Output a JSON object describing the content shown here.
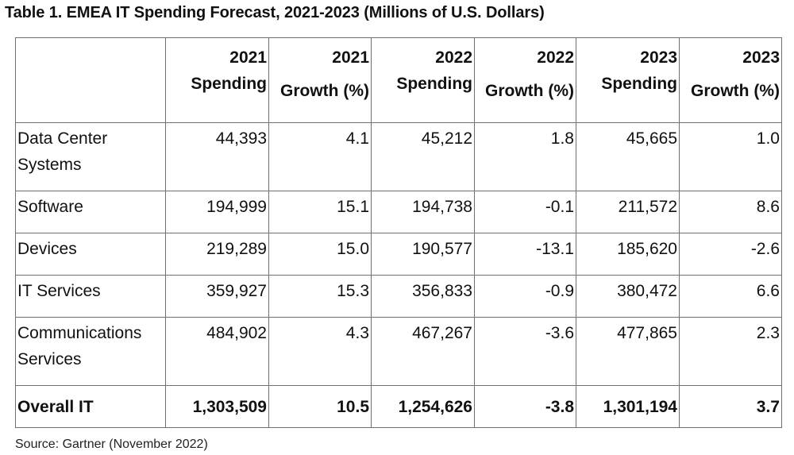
{
  "title": "Table 1. EMEA IT Spending Forecast, 2021-2023 (Millions of U.S. Dollars)",
  "table": {
    "headers": [
      {
        "top": "",
        "bottom": ""
      },
      {
        "top": "2021",
        "bottom": "Spending"
      },
      {
        "top": "2021",
        "bottom": "Growth (%)"
      },
      {
        "top": "2022",
        "bottom": "Spending"
      },
      {
        "top": "2022",
        "bottom": "Growth (%)"
      },
      {
        "top": "2023",
        "bottom": "Spending"
      },
      {
        "top": "2023",
        "bottom": "Growth (%)"
      }
    ],
    "rows": [
      {
        "label_1": "Data Center",
        "label_2": "Systems",
        "values": [
          "44,393",
          "4.1",
          "45,212",
          "1.8",
          "45,665",
          "1.0"
        ]
      },
      {
        "label_1": "Software",
        "label_2": "",
        "values": [
          "194,999",
          "15.1",
          "194,738",
          "-0.1",
          "211,572",
          "8.6"
        ]
      },
      {
        "label_1": "Devices",
        "label_2": "",
        "values": [
          "219,289",
          "15.0",
          "190,577",
          "-13.1",
          "185,620",
          "-2.6"
        ]
      },
      {
        "label_1": "IT Services",
        "label_2": "",
        "values": [
          "359,927",
          "15.3",
          "356,833",
          "-0.9",
          "380,472",
          "6.6"
        ]
      },
      {
        "label_1": "Communications",
        "label_2": "Services",
        "values": [
          "484,902",
          "4.3",
          "467,267",
          "-3.6",
          "477,865",
          "2.3"
        ]
      },
      {
        "label_1": "Overall IT",
        "label_2": "",
        "values": [
          "1,303,509",
          "10.5",
          "1,254,626",
          "-3.8",
          "1,301,194",
          "3.7"
        ]
      }
    ]
  },
  "source": "Source: Gartner (November 2022)"
}
